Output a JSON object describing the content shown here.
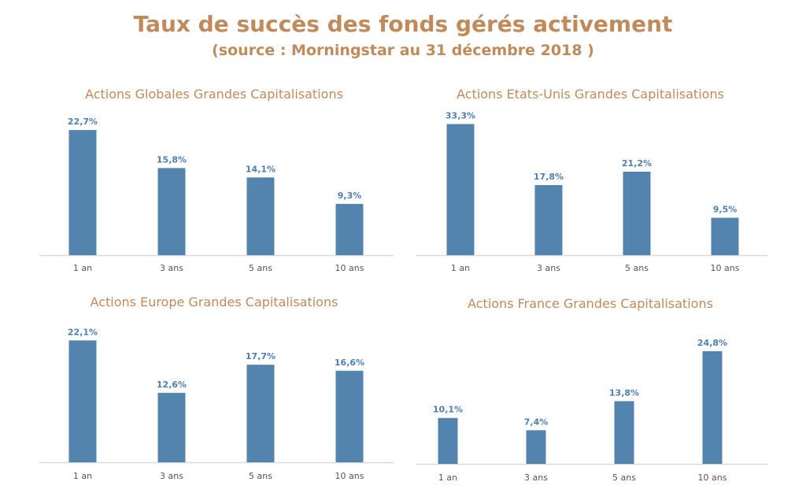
{
  "title": "Taux de succès des fonds gérés activement",
  "subtitle": "(source : Morningstar au 31 décembre 2018 )",
  "colors": {
    "bar": "#5384ad",
    "title": "#c08a5b",
    "label": "#4f7fb0",
    "axis": "#d9d9d9"
  },
  "chart_data": [
    {
      "type": "bar",
      "title": "Actions Globales Grandes Capitalisations",
      "categories": [
        "1 an",
        "3 ans",
        "5 ans",
        "10 ans"
      ],
      "values": [
        22.7,
        15.8,
        14.1,
        9.3
      ],
      "labels": [
        "22,7%",
        "15,8%",
        "14,1%",
        "9,3%"
      ],
      "unit": "%",
      "grid": false
    },
    {
      "type": "bar",
      "title": "Actions Etats-Unis Grandes Capitalisations",
      "categories": [
        "1 an",
        "3 ans",
        "5 ans",
        "10 ans"
      ],
      "values": [
        33.3,
        17.8,
        21.2,
        9.5
      ],
      "labels": [
        "33,3%",
        "17,8%",
        "21,2%",
        "9,5%"
      ],
      "unit": "%",
      "grid": false
    },
    {
      "type": "bar",
      "title": "Actions Europe Grandes Capitalisations",
      "categories": [
        "1 an",
        "3 ans",
        "5 ans",
        "10 ans"
      ],
      "values": [
        22.1,
        12.6,
        17.7,
        16.6
      ],
      "labels": [
        "22,1%",
        "12,6%",
        "17,7%",
        "16,6%"
      ],
      "unit": "%",
      "grid": false
    },
    {
      "type": "bar",
      "title": "Actions France Grandes Capitalisations",
      "categories": [
        "1 an",
        "3 ans",
        "5 ans",
        "10 ans"
      ],
      "values": [
        10.1,
        7.4,
        13.8,
        24.8
      ],
      "labels": [
        "10,1%",
        "7,4%",
        "13,8%",
        "24,8%"
      ],
      "unit": "%",
      "grid": false
    }
  ]
}
